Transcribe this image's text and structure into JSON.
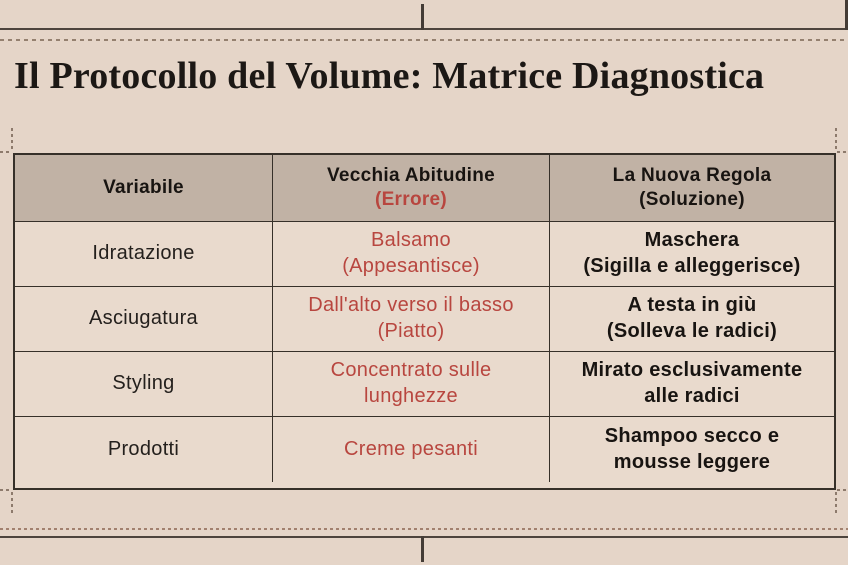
{
  "page": {
    "title": "Il Protocollo del Volume: Matrice Diagnostica"
  },
  "table": {
    "header": {
      "col1": "Variabile",
      "col2_main": "Vecchia Abitudine",
      "col2_sub": "(Errore)",
      "col3_main": "La Nuova Regola",
      "col3_sub": "(Soluzione)"
    },
    "rows": [
      {
        "variable": "Idratazione",
        "old_habit": [
          "Balsamo",
          "(Appesantisce)"
        ],
        "new_rule": [
          "Maschera",
          "(Sigilla e alleggerisce)"
        ]
      },
      {
        "variable": "Asciugatura",
        "old_habit": [
          "Dall'alto verso il basso",
          "(Piatto)"
        ],
        "new_rule": [
          "A testa in giù",
          "(Solleva le radici)"
        ]
      },
      {
        "variable": "Styling",
        "old_habit": [
          "Concentrato sulle",
          "lunghezze"
        ],
        "new_rule": [
          "Mirato esclusivamente",
          "alle radici"
        ]
      },
      {
        "variable": "Prodotti",
        "old_habit": [
          "Creme pesanti"
        ],
        "new_rule": [
          "Shampoo secco e",
          "mousse leggere"
        ]
      }
    ]
  },
  "colors": {
    "background": "#e5d5c8",
    "header_background": "#c1b2a5",
    "cell_background": "#e9dacd",
    "table_border": "#363029",
    "error_red": "#b8463f",
    "text_black": "#1c1815",
    "frame_line": "#4d443d",
    "dashed_line": "#94806f"
  }
}
